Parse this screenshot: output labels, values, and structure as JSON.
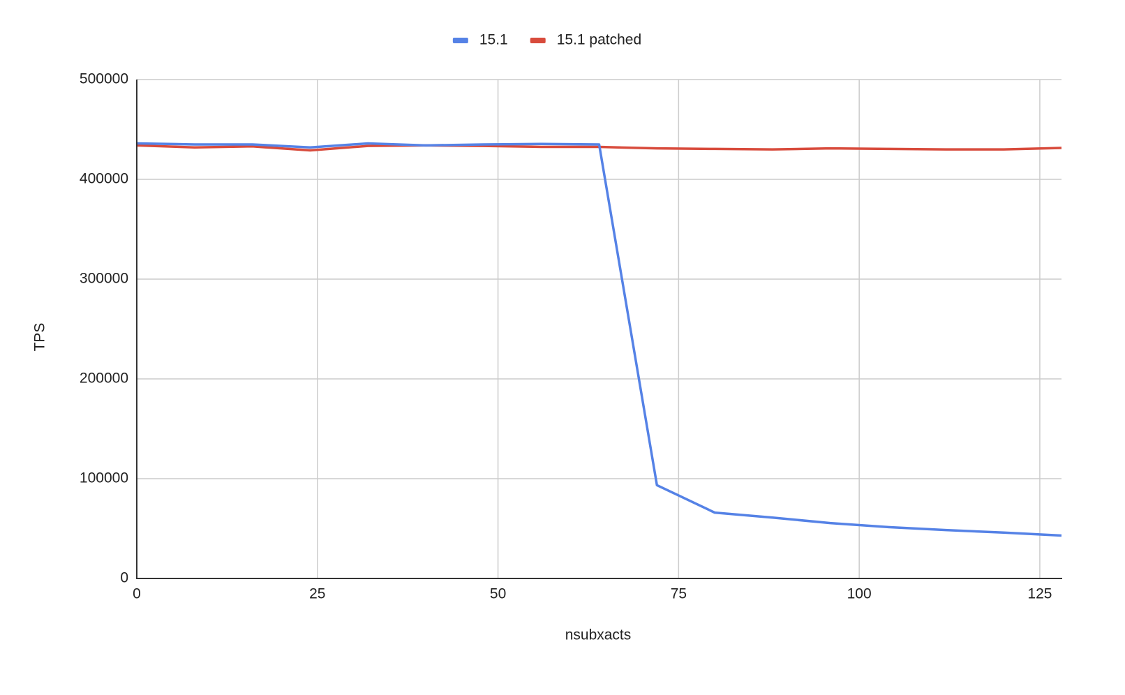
{
  "chart_data": {
    "type": "line",
    "x_label": "nsubxacts",
    "y_label": "TPS",
    "x": [
      0,
      8,
      16,
      24,
      32,
      40,
      48,
      56,
      64,
      72,
      80,
      88,
      96,
      104,
      112,
      120,
      128
    ],
    "series": [
      {
        "name": "15.1",
        "color": "#5582e6",
        "values": [
          436000,
          435000,
          435000,
          432000,
          436000,
          434000,
          435000,
          435500,
          435000,
          93500,
          66000,
          61000,
          55500,
          51500,
          48500,
          46000,
          43000
        ]
      },
      {
        "name": "15.1 patched",
        "color": "#d84b3c",
        "values": [
          434000,
          432000,
          433000,
          429000,
          433500,
          434000,
          433500,
          432500,
          432500,
          431000,
          430500,
          430000,
          431000,
          430500,
          430000,
          430000,
          431500
        ]
      }
    ],
    "xlim": [
      0,
      128
    ],
    "xticks": [
      0,
      25,
      50,
      75,
      100,
      125
    ],
    "ylim": [
      0,
      500000
    ],
    "yticks": [
      0,
      100000,
      200000,
      300000,
      400000,
      500000
    ],
    "grid": true,
    "legend": "top"
  }
}
